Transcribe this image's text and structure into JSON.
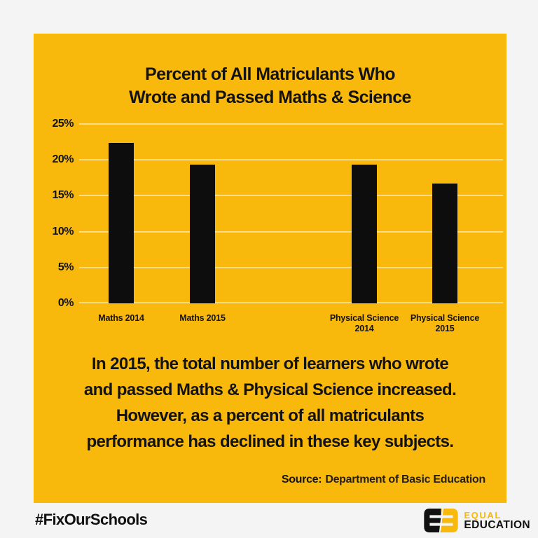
{
  "page": {
    "background": "#f4f4f5"
  },
  "card": {
    "background": "#f8b80c",
    "text_color": "#131313"
  },
  "chart_data": {
    "type": "bar",
    "title": "Percent of All Matriculants Who Wrote and Passed Maths & Science",
    "title_lines": [
      "Percent of All Matriculants Who",
      "Wrote and Passed Maths & Science"
    ],
    "categories": [
      "Maths 2014",
      "Maths 2015",
      "Physical Science 2014",
      "Physical Science 2015"
    ],
    "category_label_lines": [
      [
        "Maths 2014"
      ],
      [
        "Maths 2015"
      ],
      [
        "Physical Science",
        "2014"
      ],
      [
        "Physical Science",
        "2015"
      ]
    ],
    "values": [
      22.4,
      19.3,
      19.3,
      16.7
    ],
    "unit": "%",
    "xlabel": "",
    "ylabel": "",
    "ylim": [
      0,
      25
    ],
    "yticks": [
      {
        "value": 0,
        "label": "0%"
      },
      {
        "value": 5,
        "label": "5%"
      },
      {
        "value": 10,
        "label": "10%"
      },
      {
        "value": 15,
        "label": "15%"
      },
      {
        "value": 20,
        "label": "20%"
      },
      {
        "value": 25,
        "label": "25%"
      }
    ],
    "grid": true,
    "grid_color": "rgba(255,255,255,0.5)",
    "bar_color": "#0d0d0d",
    "legend": null
  },
  "annotation": {
    "text": "In 2015, the total number of learners who wrote and passed Maths & Physical Science increased. However, as a percent of all matriculants performance has declined in these key subjects.",
    "lines": [
      "In 2015, the total number of learners who wrote",
      "and passed Maths & Physical Science increased.",
      "However, as a percent of all matriculants",
      "performance has declined in these key subjects."
    ]
  },
  "source": {
    "label": "Source:",
    "value": "Department of Basic Education"
  },
  "footer": {
    "hashtag": "#FixOurSchools",
    "logo": {
      "icon": "equal-education-logo",
      "line1": "EQUAL",
      "line2": "EDUCATION",
      "yellow": "#f8b80c",
      "black": "#111111"
    }
  }
}
